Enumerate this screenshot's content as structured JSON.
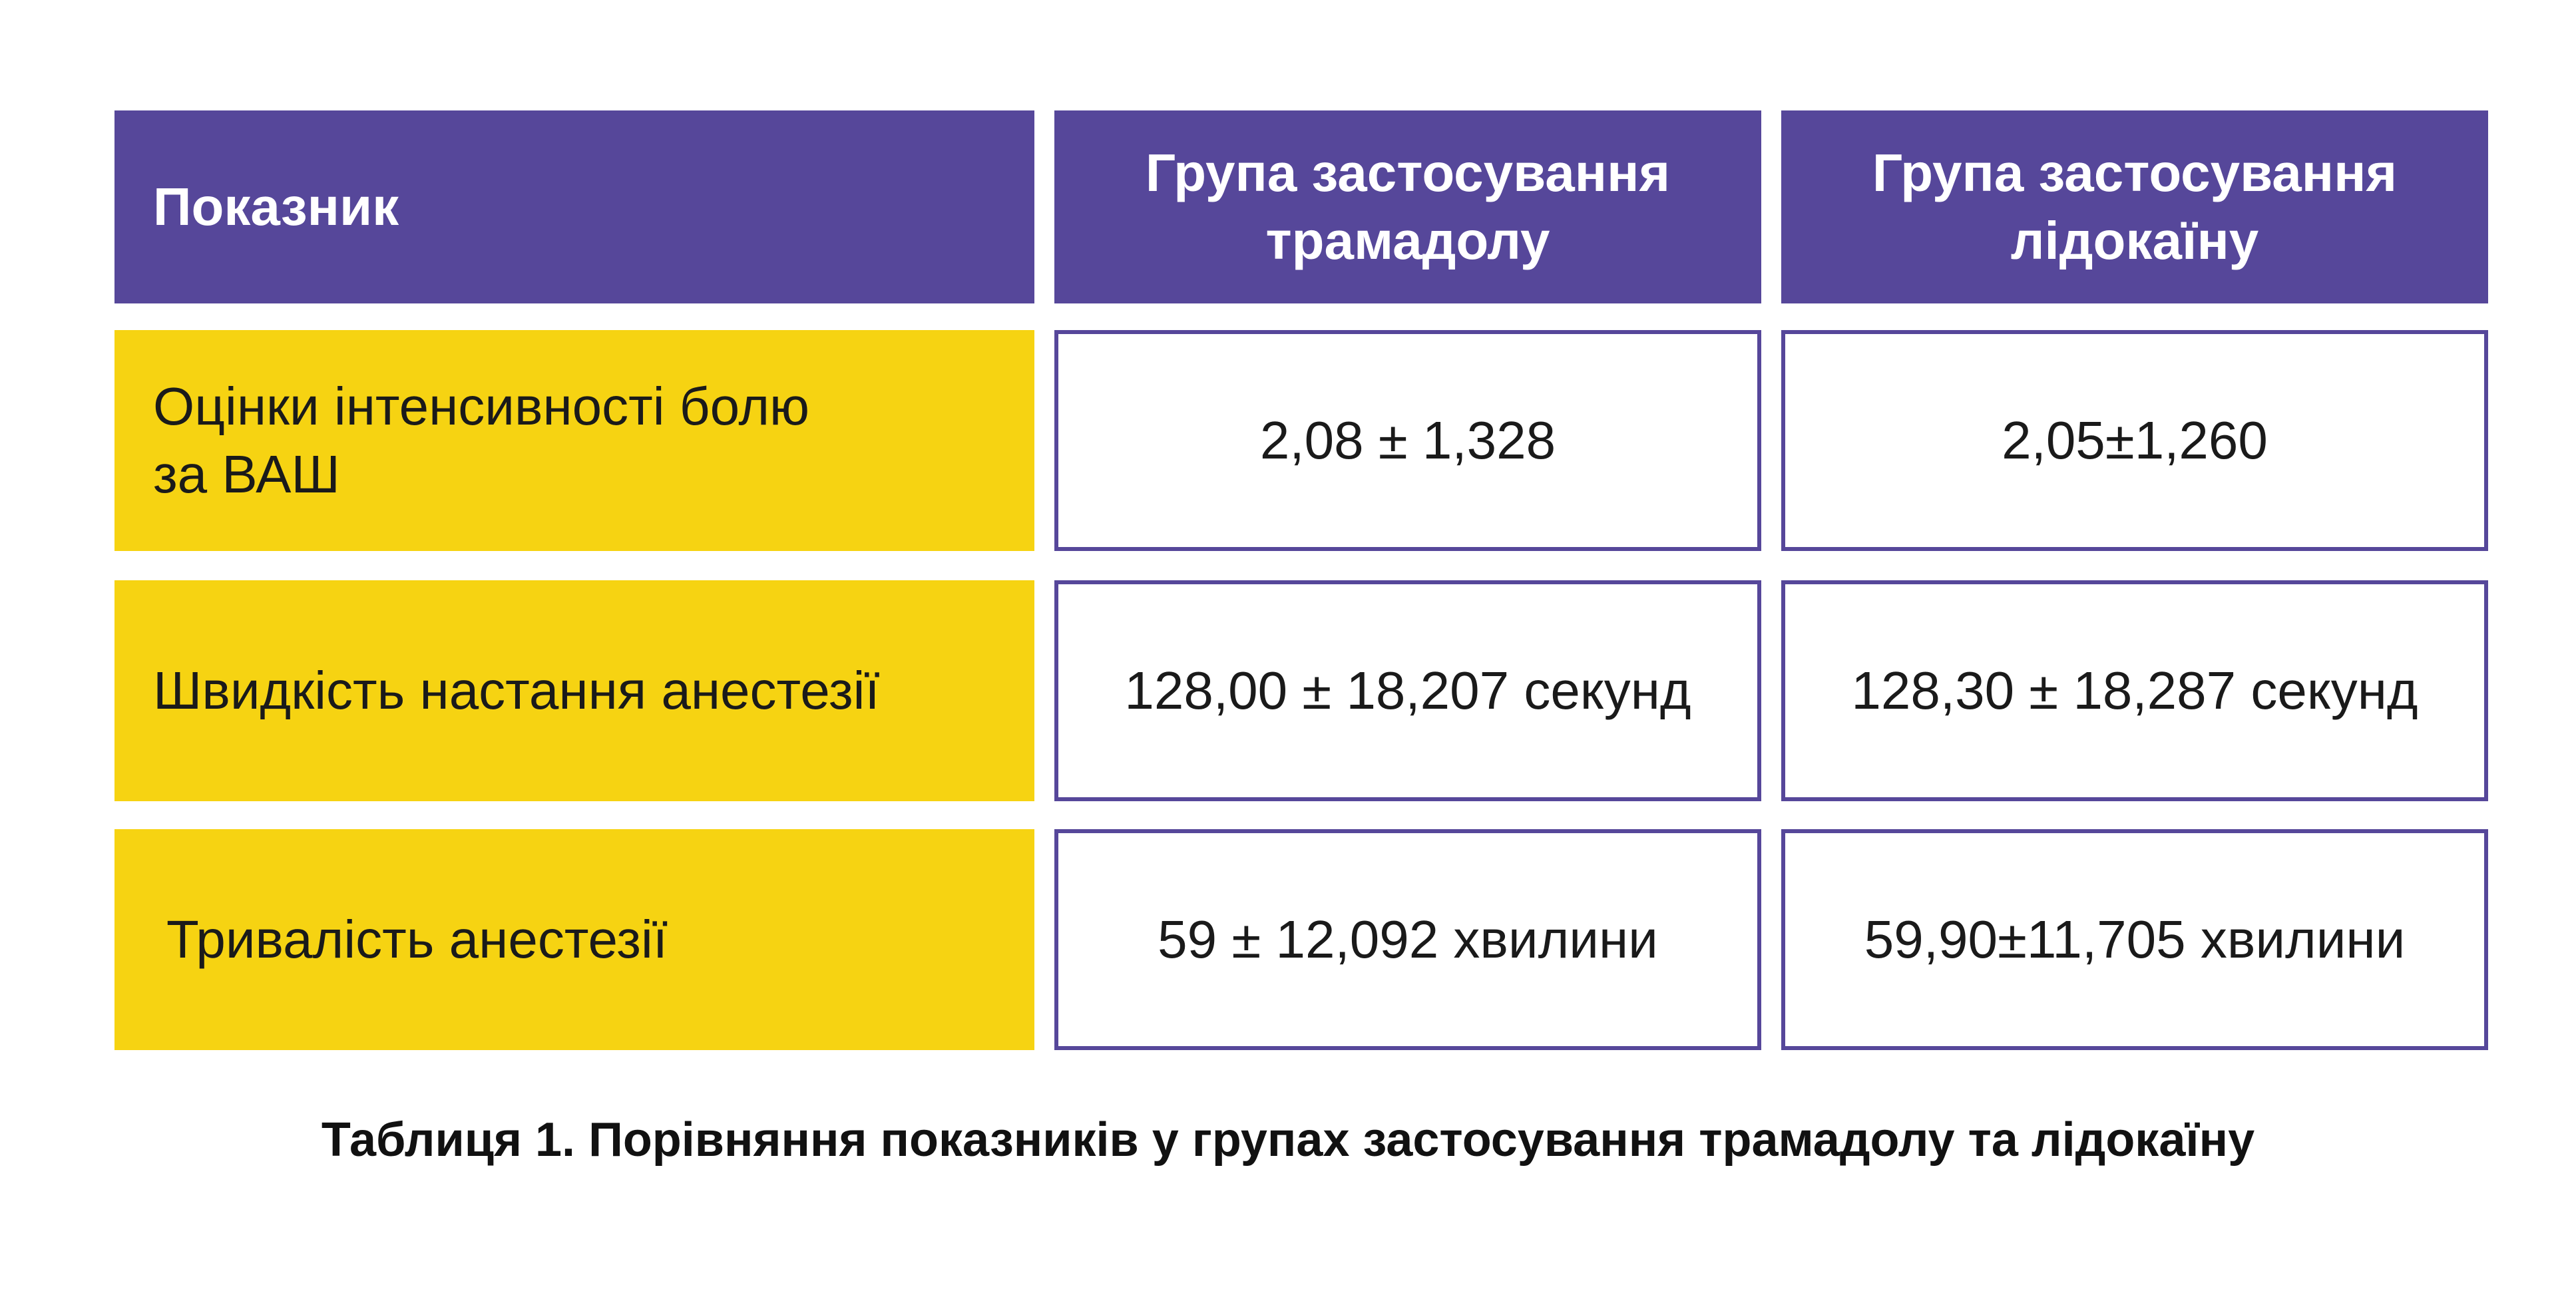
{
  "table": {
    "headers": [
      {
        "line1": "Показник",
        "line2": ""
      },
      {
        "line1": "Група застосування",
        "line2": "трамадолу"
      },
      {
        "line1": "Група застосування",
        "line2": "лідокаїну"
      }
    ],
    "rows": [
      {
        "label_line1": "Оцінки інтенсивності болю",
        "label_line2": "за ВАШ",
        "tramadol": "2,08 ± 1,328",
        "lidocaine": "2,05±1,260"
      },
      {
        "label_line1": "Швидкість настання анестезії",
        "label_line2": "",
        "tramadol": "128,00 ± 18,207 секунд",
        "lidocaine": "128,30 ± 18,287 секунд"
      },
      {
        "label_line1": "Тривалість анестезії",
        "label_line2": "",
        "tramadol": "59 ± 12,092 хвилини",
        "lidocaine": "59,90±11,705 хвилини"
      }
    ]
  },
  "caption": "Таблиця 1. Порівняння показників у групах застосування трамадолу та лідокаїну",
  "colors": {
    "header_bg": "#56479a",
    "label_bg": "#f6d312",
    "border": "#56479a"
  }
}
